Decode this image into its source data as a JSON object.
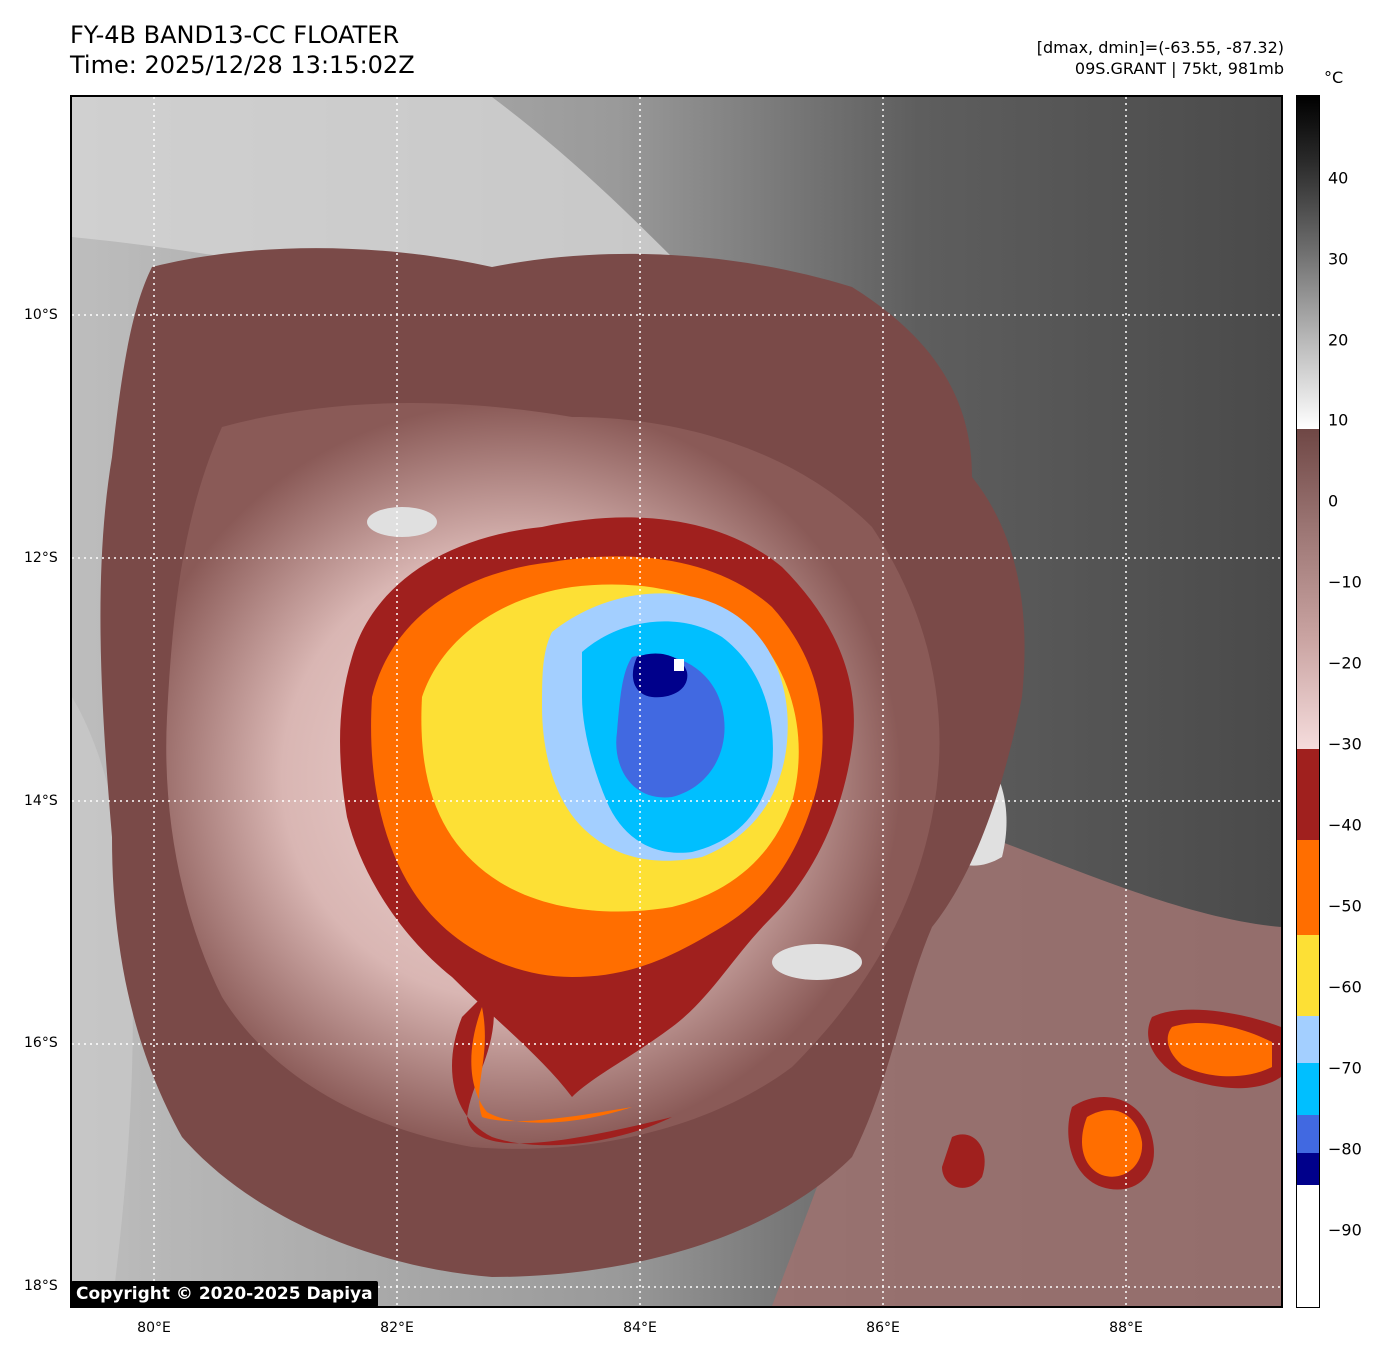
{
  "header": {
    "title_line1": "FY-4B BAND13-CC FLOATER",
    "title_line2": "Time: 2025/12/28 13:15:02Z",
    "info_line1": "[dmax, dmin]=(-63.55, -87.32)",
    "info_line2": "09S.GRANT | 75kt, 981mb"
  },
  "map": {
    "lat_labels": [
      "10°S",
      "12°S",
      "14°S",
      "16°S",
      "18°S"
    ],
    "lon_labels": [
      "80°E",
      "82°E",
      "84°E",
      "86°E",
      "88°E"
    ],
    "grid": "dotted",
    "colors": {
      "background_grey": "#6e6e6e",
      "light_grey": "#cfcfcf",
      "warm_cloud_brown": "#7a4a48",
      "pink_cloud": "#e8c6c4",
      "dark_red": "#a0201e",
      "orange": "#ff6e00",
      "yellow": "#fde035",
      "light_blue": "#a3cfff",
      "cyan": "#00bfff",
      "royal_blue": "#4169e1",
      "navy": "#00008b",
      "white": "#ffffff"
    }
  },
  "copyright": "Copyright © 2020-2025 Dapiya",
  "colorbar": {
    "unit": "°C",
    "labels": [
      "40",
      "30",
      "20",
      "10",
      "0",
      "−10",
      "−20",
      "−30",
      "−40",
      "−50",
      "−60",
      "−70",
      "−80",
      "−90"
    ]
  }
}
